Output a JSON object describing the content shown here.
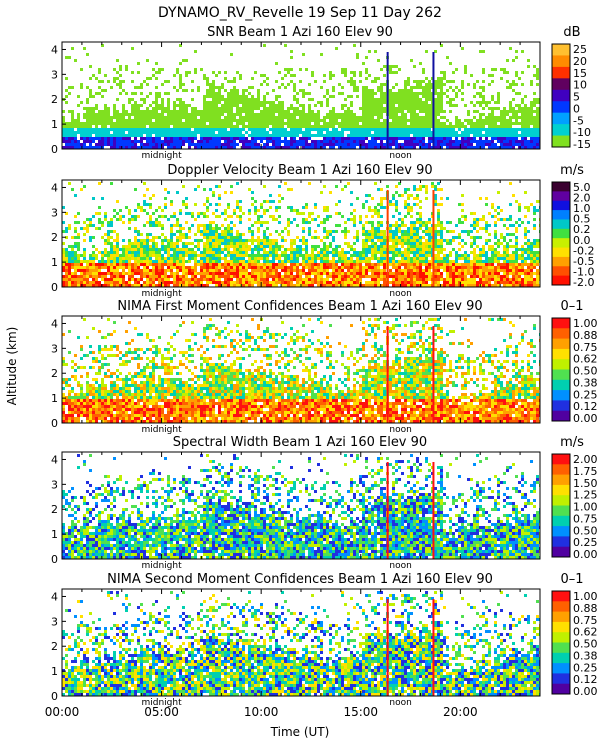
{
  "header": {
    "title": "DYNAMO_RV_Revelle  19 Sep 11 Day 262",
    "ylabel": "Altitude (km)",
    "xlabel": "Time (UT)",
    "xticks": [
      "00:00",
      "05:00",
      "10:00",
      "15:00",
      "20:00"
    ],
    "marker_midnight": "midnight",
    "marker_noon": "noon"
  },
  "chart_data": [
    {
      "type": "heatmap",
      "title": "SNR Beam 1 Azi 160 Elev 90",
      "unit": "dB",
      "x_range_hours": [
        0,
        24
      ],
      "ylim": [
        0,
        4.3
      ],
      "yticks": [
        "0",
        "1",
        "2",
        "3",
        "4"
      ],
      "colorbar_labels": [
        "25",
        "20",
        "15",
        "10",
        "5",
        "0",
        "-5",
        "-10",
        "-15"
      ],
      "colorbar_colors": [
        "#ffc030",
        "#ff8c00",
        "#ff3000",
        "#60005f",
        "#4000c0",
        "#0038ff",
        "#00a0ff",
        "#00d0d0",
        "#80e020"
      ]
    },
    {
      "type": "heatmap",
      "title": "Doppler Velocity Beam 1 Azi 160 Elev 90",
      "unit": "m/s",
      "x_range_hours": [
        0,
        24
      ],
      "ylim": [
        0,
        4.3
      ],
      "yticks": [
        "0",
        "1",
        "2",
        "3",
        "4"
      ],
      "colorbar_labels": [
        "5.0",
        "2.0",
        "1.0",
        "0.5",
        "0.2",
        "0.0",
        "-0.2",
        "-0.5",
        "-1.0",
        "-2.0"
      ],
      "colorbar_colors": [
        "#3a0030",
        "#6000a0",
        "#1010e0",
        "#0080ff",
        "#00c8c8",
        "#40e040",
        "#c8f000",
        "#ffe000",
        "#ffa000",
        "#ff5000",
        "#ff1000"
      ]
    },
    {
      "type": "heatmap",
      "title": "NIMA First Moment Confidences Beam 1 Azi 160 Elev 90",
      "unit": "0–1",
      "x_range_hours": [
        0,
        24
      ],
      "ylim": [
        0,
        4.3
      ],
      "yticks": [
        "0",
        "1",
        "2",
        "3",
        "4"
      ],
      "colorbar_labels": [
        "1.00",
        "0.88",
        "0.75",
        "0.62",
        "0.50",
        "0.38",
        "0.25",
        "0.12",
        "0.00"
      ],
      "colorbar_colors": [
        "#ff1010",
        "#ff6000",
        "#ffa000",
        "#ffe000",
        "#c0f000",
        "#50e050",
        "#00d0b0",
        "#0090ff",
        "#2030e0",
        "#5000a0"
      ]
    },
    {
      "type": "heatmap",
      "title": "Spectral Width Beam 1 Azi 160 Elev 90",
      "unit": "m/s",
      "x_range_hours": [
        0,
        24
      ],
      "ylim": [
        0,
        4.3
      ],
      "yticks": [
        "0",
        "1",
        "2",
        "3",
        "4"
      ],
      "colorbar_labels": [
        "2.00",
        "1.75",
        "1.50",
        "1.25",
        "1.00",
        "0.75",
        "0.50",
        "0.25",
        "0.00"
      ],
      "colorbar_colors": [
        "#ff1010",
        "#ff6000",
        "#ffa000",
        "#ffe000",
        "#c0f000",
        "#50e050",
        "#00d0b0",
        "#0090ff",
        "#2030e0",
        "#5000a0"
      ]
    },
    {
      "type": "heatmap",
      "title": "NIMA Second Moment Confidences Beam 1 Azi 160 Elev 90",
      "unit": "0–1",
      "x_range_hours": [
        0,
        24
      ],
      "ylim": [
        0,
        4.3
      ],
      "yticks": [
        "0",
        "1",
        "2",
        "3",
        "4"
      ],
      "colorbar_labels": [
        "1.00",
        "0.88",
        "0.75",
        "0.62",
        "0.50",
        "0.38",
        "0.25",
        "0.12",
        "0.00"
      ],
      "colorbar_colors": [
        "#ff1010",
        "#ff6000",
        "#ffa000",
        "#ffe000",
        "#c0f000",
        "#50e050",
        "#00d0b0",
        "#0090ff",
        "#2030e0",
        "#5000a0"
      ]
    }
  ]
}
